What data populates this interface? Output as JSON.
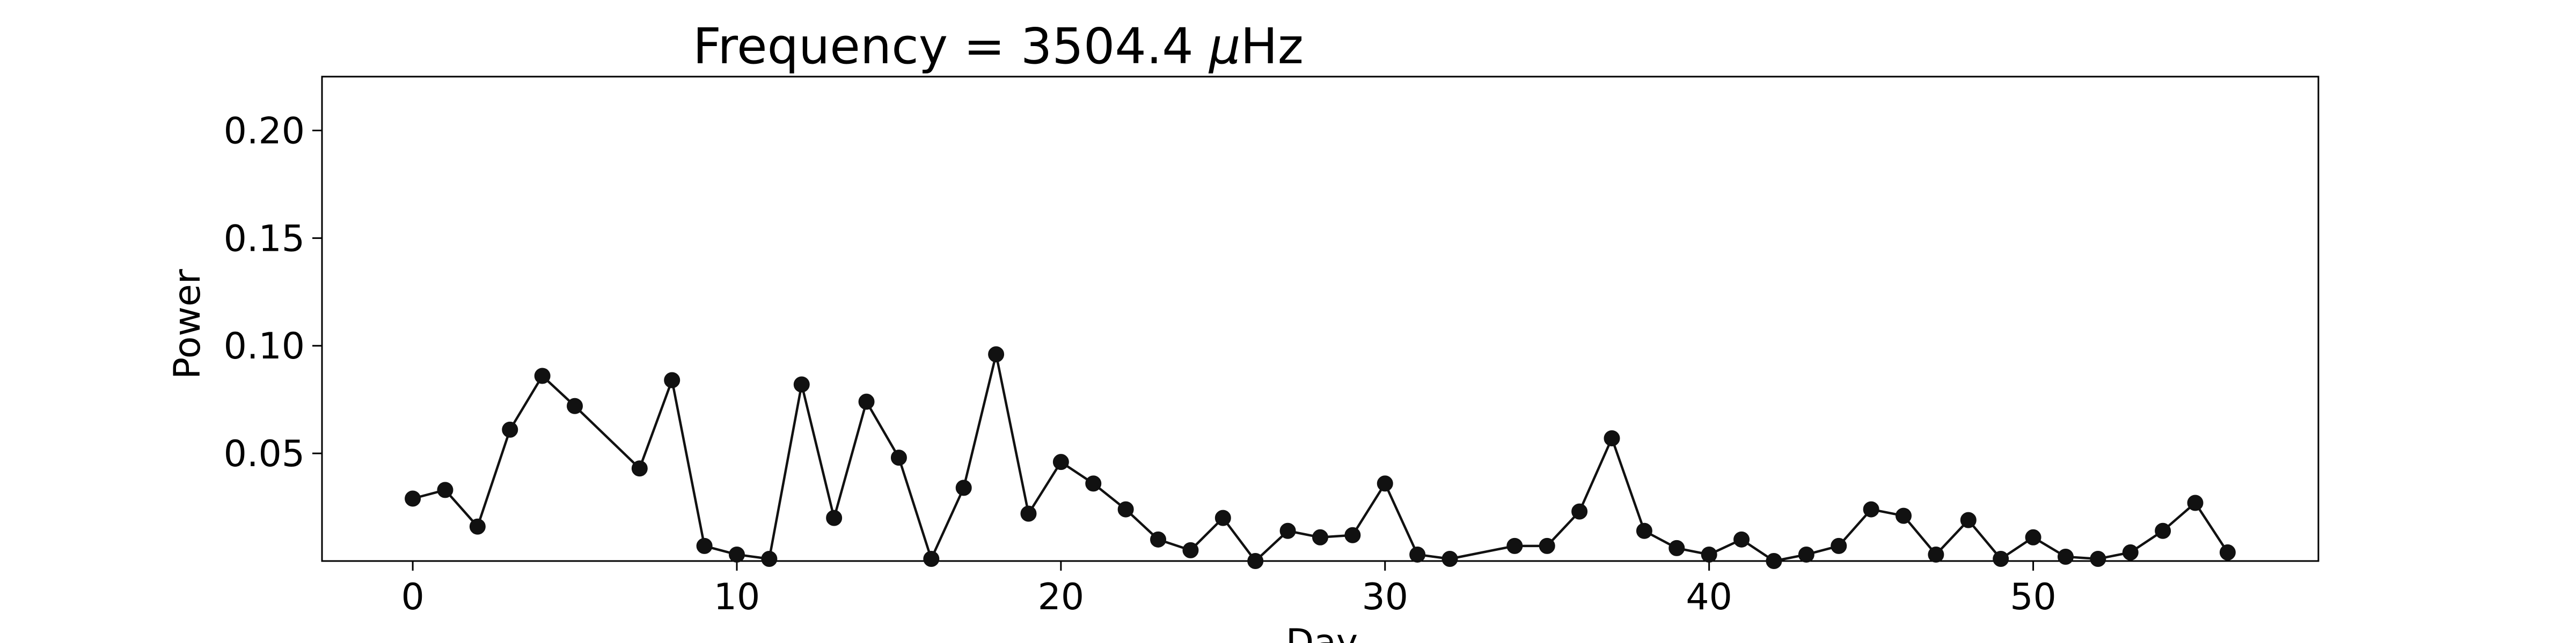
{
  "chart_data": {
    "type": "line",
    "title_prefix": "Frequency = 3504.4 ",
    "title_mu": "μ",
    "title_suffix": "Hz",
    "xlabel": "Day",
    "ylabel": "Power",
    "xlim": [
      -2.8,
      58.8
    ],
    "ylim": [
      0.0,
      0.225
    ],
    "xticks": [
      0,
      10,
      20,
      30,
      40,
      50
    ],
    "xtick_labels": [
      "0",
      "10",
      "20",
      "30",
      "40",
      "50"
    ],
    "yticks": [
      0.05,
      0.1,
      0.15,
      0.2
    ],
    "ytick_labels": [
      "0.05",
      "0.10",
      "0.15",
      "0.20"
    ],
    "grid": false,
    "series": [
      {
        "color": "#111111",
        "x": [
          0,
          1,
          2,
          3,
          4,
          5,
          7,
          8,
          9,
          10,
          11,
          12,
          13,
          14,
          15,
          16,
          17,
          18,
          19,
          20,
          21,
          22,
          23,
          24,
          25,
          26,
          27,
          28,
          29,
          30,
          31,
          32,
          34,
          35,
          36,
          37,
          38,
          39,
          40,
          41,
          42,
          43,
          44,
          45,
          46,
          47,
          48,
          49,
          50,
          51,
          52,
          53,
          54,
          55,
          56
        ],
        "y": [
          0.029,
          0.033,
          0.016,
          0.061,
          0.086,
          0.072,
          0.043,
          0.084,
          0.007,
          0.003,
          0.001,
          0.082,
          0.02,
          0.074,
          0.048,
          0.001,
          0.034,
          0.096,
          0.022,
          0.046,
          0.036,
          0.024,
          0.01,
          0.005,
          0.02,
          0.0,
          0.014,
          0.011,
          0.012,
          0.036,
          0.003,
          0.001,
          0.007,
          0.007,
          0.023,
          0.057,
          0.014,
          0.006,
          0.003,
          0.01,
          0.0,
          0.003,
          0.007,
          0.024,
          0.021,
          0.003,
          0.019,
          0.001,
          0.011,
          0.002,
          0.001,
          0.004,
          0.014,
          0.027,
          0.004
        ]
      }
    ]
  }
}
